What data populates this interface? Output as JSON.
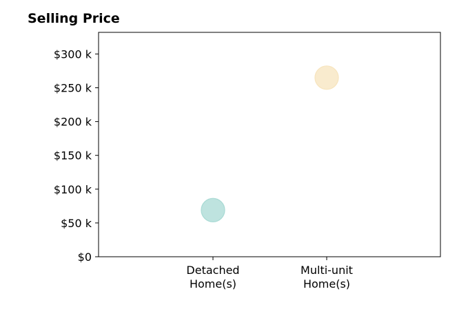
{
  "chart_data": {
    "type": "scatter",
    "title": "Selling Price",
    "categories": [
      "Detached\nHome(s)",
      "Multi-unit\nHome(s)"
    ],
    "points": [
      {
        "category": "Detached\nHome(s)",
        "value": 69000,
        "color": "#a8dad4"
      },
      {
        "category": "Multi-unit\nHome(s)",
        "value": 265000,
        "color": "#f7e4bd"
      }
    ],
    "y_ticks": [
      {
        "value": 0,
        "label": "$0"
      },
      {
        "value": 50000,
        "label": "$50 k"
      },
      {
        "value": 100000,
        "label": "$100 k"
      },
      {
        "value": 150000,
        "label": "$150 k"
      },
      {
        "value": 200000,
        "label": "$200 k"
      },
      {
        "value": 250000,
        "label": "$250 k"
      },
      {
        "value": 300000,
        "label": "$300 k"
      }
    ],
    "ylim": [
      0,
      332000
    ],
    "grid": false,
    "legend": "none"
  }
}
